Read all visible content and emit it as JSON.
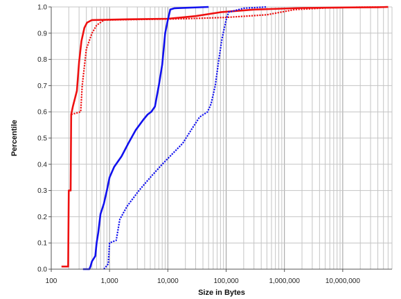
{
  "chart_data": {
    "type": "line",
    "xlabel": "Size in Bytes",
    "ylabel": "Percentile",
    "xscale": "log",
    "xlim": [
      100,
      70000000
    ],
    "ylim": [
      0,
      1.0
    ],
    "x_tick_values": [
      100,
      1000,
      10000,
      100000,
      1000000,
      10000000
    ],
    "x_tick_labels": [
      "100",
      "1,000",
      "10,000",
      "100,000",
      "1,000,000",
      "10,000,000"
    ],
    "y_tick_values": [
      0,
      0.1,
      0.2,
      0.3,
      0.4,
      0.5,
      0.6,
      0.7,
      0.8,
      0.9,
      1.0
    ],
    "y_tick_labels": [
      "0.0",
      "0.1",
      "0.2",
      "0.3",
      "0.4",
      "0.5",
      "0.6",
      "0.7",
      "0.8",
      "0.9",
      "1.0"
    ],
    "grid": true,
    "legend": "none",
    "series": [
      {
        "color": "#ee1111",
        "style": "solid",
        "points": [
          [
            150,
            0.01
          ],
          [
            195,
            0.01
          ],
          [
            200,
            0.3
          ],
          [
            215,
            0.3
          ],
          [
            220,
            0.59
          ],
          [
            235,
            0.62
          ],
          [
            275,
            0.68
          ],
          [
            300,
            0.79
          ],
          [
            330,
            0.87
          ],
          [
            370,
            0.92
          ],
          [
            410,
            0.94
          ],
          [
            500,
            0.95
          ],
          [
            2000,
            0.953
          ],
          [
            10000,
            0.955
          ],
          [
            30000,
            0.965
          ],
          [
            80000,
            0.98
          ],
          [
            300000,
            0.99
          ],
          [
            2000000,
            0.996
          ],
          [
            10000000,
            0.998
          ],
          [
            40000000,
            0.999
          ],
          [
            60000000,
            1.0
          ]
        ]
      },
      {
        "color": "#ee1111",
        "style": "dotted",
        "points": [
          [
            220,
            0.59
          ],
          [
            320,
            0.6
          ],
          [
            340,
            0.7
          ],
          [
            400,
            0.84
          ],
          [
            500,
            0.9
          ],
          [
            600,
            0.93
          ],
          [
            800,
            0.95
          ],
          [
            5000,
            0.953
          ],
          [
            20000,
            0.955
          ],
          [
            100000,
            0.96
          ],
          [
            500000,
            0.97
          ],
          [
            1500000,
            0.99
          ],
          [
            5000000,
            0.996
          ],
          [
            20000000,
            0.999
          ],
          [
            60000000,
            1.0
          ]
        ]
      },
      {
        "color": "#1111ee",
        "style": "solid",
        "points": [
          [
            350,
            0.0
          ],
          [
            450,
            0.0
          ],
          [
            470,
            0.01
          ],
          [
            500,
            0.03
          ],
          [
            570,
            0.05
          ],
          [
            600,
            0.1
          ],
          [
            640,
            0.14
          ],
          [
            700,
            0.21
          ],
          [
            800,
            0.25
          ],
          [
            900,
            0.3
          ],
          [
            1000,
            0.35
          ],
          [
            1200,
            0.39
          ],
          [
            1600,
            0.43
          ],
          [
            2100,
            0.48
          ],
          [
            2800,
            0.53
          ],
          [
            3800,
            0.57
          ],
          [
            4500,
            0.59
          ],
          [
            5200,
            0.6
          ],
          [
            6000,
            0.62
          ],
          [
            7000,
            0.7
          ],
          [
            8000,
            0.78
          ],
          [
            9000,
            0.9
          ],
          [
            10000,
            0.95
          ],
          [
            11000,
            0.99
          ],
          [
            13000,
            0.995
          ],
          [
            50000,
            1.0
          ]
        ]
      },
      {
        "color": "#1111ee",
        "style": "dotted",
        "points": [
          [
            800,
            0.0
          ],
          [
            950,
            0.02
          ],
          [
            1000,
            0.1
          ],
          [
            1300,
            0.11
          ],
          [
            1500,
            0.19
          ],
          [
            2000,
            0.24
          ],
          [
            3200,
            0.3
          ],
          [
            5000,
            0.35
          ],
          [
            8000,
            0.4
          ],
          [
            12000,
            0.44
          ],
          [
            18000,
            0.48
          ],
          [
            25000,
            0.53
          ],
          [
            35000,
            0.58
          ],
          [
            48000,
            0.6
          ],
          [
            55000,
            0.63
          ],
          [
            65000,
            0.7
          ],
          [
            75000,
            0.8
          ],
          [
            85000,
            0.88
          ],
          [
            100000,
            0.95
          ],
          [
            110000,
            0.98
          ],
          [
            200000,
            0.995
          ],
          [
            500000,
            1.0
          ]
        ]
      }
    ]
  }
}
